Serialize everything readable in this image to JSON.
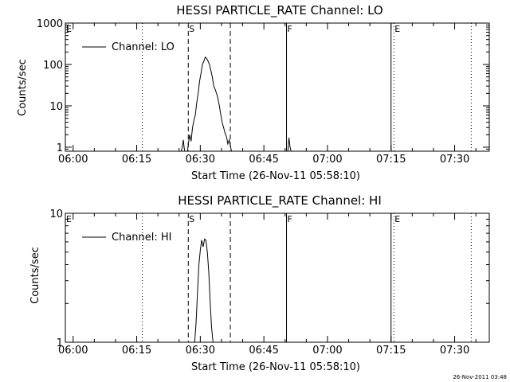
{
  "chart_data": [
    {
      "type": "line",
      "title": "HESSI PARTICLE_RATE Channel: LO",
      "xlabel": "Start Time (26-Nov-11 05:58:10)",
      "ylabel": "Counts/sec",
      "y_scale": "log",
      "ylim": [
        0.8,
        1000
      ],
      "xlim": [
        "05:58:10",
        "07:38:10"
      ],
      "x_ticks": [
        "06:00",
        "06:15",
        "06:30",
        "06:45",
        "07:00",
        "07:15",
        "07:30"
      ],
      "y_ticks": [
        "1",
        "10",
        "100",
        "1000"
      ],
      "legend": {
        "placement": "top-left",
        "entries": [
          "Channel: LO"
        ]
      },
      "grid": false,
      "markers": [
        {
          "label": "E",
          "time": "05:58:10",
          "style": "dotted"
        },
        {
          "label": "",
          "time": "06:16:20",
          "style": "dotted"
        },
        {
          "label": "S",
          "time": "06:27:10",
          "style": "dashed"
        },
        {
          "label": "",
          "time": "06:37:05",
          "style": "dashed"
        },
        {
          "label": "F",
          "time": "06:50:20",
          "style": "solid"
        },
        {
          "label": "",
          "time": "07:15:00",
          "style": "solid"
        },
        {
          "label": "E",
          "time": "07:15:40",
          "style": "dotted"
        },
        {
          "label": "",
          "time": "07:33:55",
          "style": "dotted"
        }
      ],
      "series": [
        {
          "name": "Channel: LO",
          "segments": [
            {
              "x": [
                "06:25:30",
                "06:25:45",
                "06:26:00",
                "06:26:10",
                "06:26:20"
              ],
              "y": [
                0.8,
                1.0,
                1.5,
                1.0,
                0.8
              ]
            },
            {
              "x": [
                "06:27:00",
                "06:27:10",
                "06:27:30",
                "06:27:50",
                "06:28:10",
                "06:28:30",
                "06:28:50",
                "06:29:10",
                "06:29:30",
                "06:29:50",
                "06:30:10",
                "06:30:30",
                "06:30:50",
                "06:31:10",
                "06:31:30",
                "06:31:50",
                "06:32:10",
                "06:32:30",
                "06:32:50",
                "06:33:10",
                "06:33:30",
                "06:33:50",
                "06:34:10",
                "06:34:30",
                "06:34:50",
                "06:35:10",
                "06:35:30",
                "06:35:50",
                "06:36:10",
                "06:36:30",
                "06:36:50",
                "06:37:10",
                "06:37:20"
              ],
              "y": [
                0.8,
                1.2,
                2.0,
                1.4,
                3.0,
                4.5,
                6.0,
                12,
                20,
                40,
                60,
                100,
                120,
                150,
                140,
                120,
                100,
                70,
                50,
                30,
                25,
                20,
                15,
                10,
                6,
                4,
                3,
                2.2,
                1.8,
                1.2,
                1.5,
                1.0,
                0.8
              ]
            },
            {
              "x": [
                "06:50:40",
                "06:50:55",
                "06:51:10",
                "06:51:25"
              ],
              "y": [
                0.8,
                1.7,
                1.0,
                0.8
              ]
            }
          ]
        }
      ]
    },
    {
      "type": "line",
      "title": "HESSI PARTICLE_RATE Channel: HI",
      "xlabel": "Start Time (26-Nov-11 05:58:10)",
      "ylabel": "Counts/sec",
      "y_scale": "log",
      "ylim": [
        1,
        10
      ],
      "xlim": [
        "05:58:10",
        "07:38:10"
      ],
      "x_ticks": [
        "06:00",
        "06:15",
        "06:30",
        "06:45",
        "07:00",
        "07:15",
        "07:30"
      ],
      "y_ticks": [
        "1",
        "10"
      ],
      "legend": {
        "placement": "top-left",
        "entries": [
          "Channel: HI"
        ]
      },
      "grid": false,
      "markers": [
        {
          "label": "E",
          "time": "05:58:10",
          "style": "dotted"
        },
        {
          "label": "",
          "time": "06:16:20",
          "style": "dotted"
        },
        {
          "label": "S",
          "time": "06:27:10",
          "style": "dashed"
        },
        {
          "label": "",
          "time": "06:37:05",
          "style": "dashed"
        },
        {
          "label": "F",
          "time": "06:50:20",
          "style": "solid"
        },
        {
          "label": "",
          "time": "07:15:00",
          "style": "solid"
        },
        {
          "label": "E",
          "time": "07:15:40",
          "style": "dotted"
        },
        {
          "label": "",
          "time": "07:33:55",
          "style": "dotted"
        }
      ],
      "series": [
        {
          "name": "Channel: HI",
          "segments": [
            {
              "x": [
                "06:28:40",
                "06:29:00",
                "06:29:20",
                "06:29:40",
                "06:30:00",
                "06:30:20",
                "06:30:40",
                "06:31:00",
                "06:31:20",
                "06:31:40",
                "06:32:00",
                "06:32:20",
                "06:32:40",
                "06:33:00"
              ],
              "y": [
                1.0,
                1.4,
                2.4,
                4.0,
                5.2,
                6.2,
                5.5,
                6.3,
                6.2,
                5.0,
                3.5,
                2.0,
                1.3,
                1.0
              ]
            }
          ]
        }
      ]
    }
  ],
  "footer": {
    "stamp": "26-Nov-2011 03:48"
  }
}
